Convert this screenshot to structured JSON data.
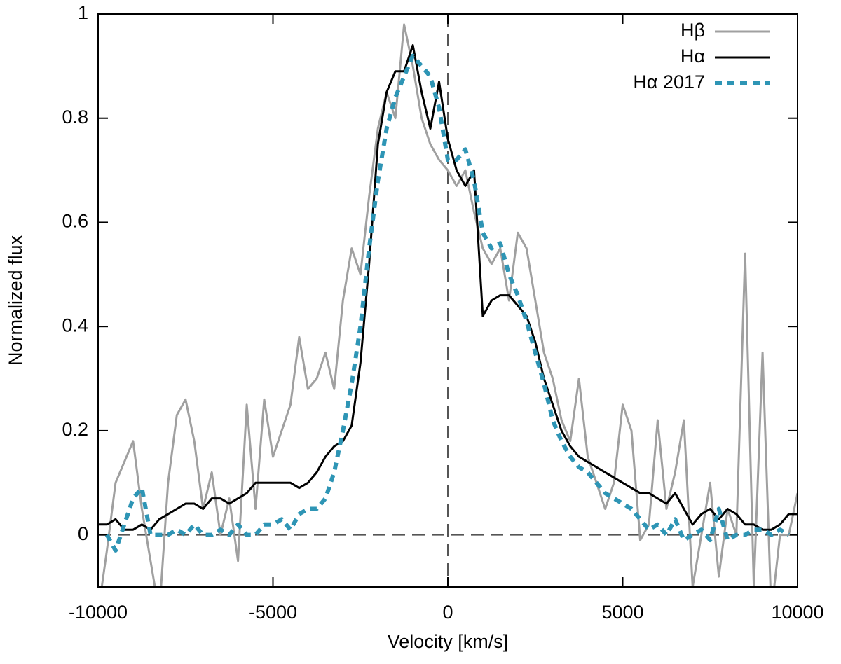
{
  "chart_data": {
    "type": "line",
    "xlabel": "Velocity [km/s]",
    "ylabel": "Normalized flux",
    "xlim": [
      -10000,
      10000
    ],
    "ylim": [
      -0.1,
      1
    ],
    "xticks": [
      -10000,
      -5000,
      0,
      5000,
      10000
    ],
    "yticks": [
      0,
      0.2,
      0.4,
      0.6,
      0.8,
      1
    ],
    "legend": "top-right",
    "x": [
      -10000,
      -9750,
      -9500,
      -9250,
      -9000,
      -8750,
      -8500,
      -8250,
      -8000,
      -7750,
      -7500,
      -7250,
      -7000,
      -6750,
      -6500,
      -6250,
      -6000,
      -5750,
      -5500,
      -5250,
      -5000,
      -4750,
      -4500,
      -4250,
      -4000,
      -3750,
      -3500,
      -3250,
      -3000,
      -2750,
      -2500,
      -2250,
      -2000,
      -1750,
      -1500,
      -1250,
      -1000,
      -750,
      -500,
      -250,
      0,
      250,
      500,
      750,
      1000,
      1250,
      1500,
      1750,
      2000,
      2250,
      2500,
      2750,
      3000,
      3250,
      3500,
      3750,
      4000,
      4250,
      4500,
      4750,
      5000,
      5250,
      5500,
      5750,
      6000,
      6250,
      6500,
      6750,
      7000,
      7250,
      7500,
      7750,
      8000,
      8250,
      8500,
      8750,
      9000,
      9250,
      9500,
      9750,
      10000
    ],
    "series": [
      {
        "name": "Hβ",
        "color": "#a0a0a0",
        "dashed": false,
        "values": [
          -0.15,
          -0.03,
          0.1,
          0.14,
          0.18,
          0.05,
          -0.05,
          -0.15,
          0.1,
          0.23,
          0.26,
          0.18,
          0.05,
          0.12,
          0.0,
          0.07,
          -0.05,
          0.25,
          0.05,
          0.26,
          0.15,
          0.2,
          0.25,
          0.38,
          0.28,
          0.3,
          0.35,
          0.28,
          0.45,
          0.55,
          0.5,
          0.65,
          0.78,
          0.85,
          0.8,
          0.98,
          0.9,
          0.8,
          0.75,
          0.72,
          0.7,
          0.67,
          0.7,
          0.62,
          0.55,
          0.52,
          0.55,
          0.45,
          0.58,
          0.55,
          0.45,
          0.35,
          0.3,
          0.22,
          0.18,
          0.3,
          0.15,
          0.1,
          0.05,
          0.1,
          0.25,
          0.2,
          -0.01,
          0.02,
          0.22,
          0.05,
          0.12,
          0.22,
          -0.1,
          0.0,
          0.1,
          -0.08,
          0.05,
          0.0,
          0.54,
          -0.1,
          0.35,
          -0.15,
          0.0,
          0.0,
          0.08
        ]
      },
      {
        "name": "Hα",
        "color": "#000000",
        "dashed": false,
        "values": [
          0.02,
          0.02,
          0.03,
          0.01,
          0.01,
          0.02,
          0.01,
          0.03,
          0.04,
          0.05,
          0.06,
          0.06,
          0.05,
          0.07,
          0.07,
          0.06,
          0.07,
          0.08,
          0.1,
          0.1,
          0.1,
          0.1,
          0.1,
          0.09,
          0.1,
          0.12,
          0.15,
          0.17,
          0.18,
          0.21,
          0.33,
          0.52,
          0.75,
          0.85,
          0.89,
          0.89,
          0.94,
          0.85,
          0.78,
          0.87,
          0.76,
          0.7,
          0.67,
          0.7,
          0.42,
          0.45,
          0.46,
          0.46,
          0.44,
          0.42,
          0.37,
          0.3,
          0.25,
          0.2,
          0.17,
          0.15,
          0.14,
          0.13,
          0.12,
          0.11,
          0.1,
          0.09,
          0.08,
          0.08,
          0.07,
          0.06,
          0.08,
          0.05,
          0.02,
          0.04,
          0.05,
          0.03,
          0.05,
          0.04,
          0.02,
          0.02,
          0.01,
          0.01,
          0.02,
          0.04,
          0.04
        ]
      },
      {
        "name": "Hα 2017",
        "color": "#2e95b5",
        "dashed": true,
        "values": [
          null,
          0.0,
          -0.03,
          0.02,
          0.07,
          0.09,
          0.0,
          0.0,
          0.0,
          0.01,
          0.0,
          0.02,
          0.0,
          0.0,
          0.01,
          0.0,
          0.02,
          0.0,
          0.0,
          0.02,
          0.02,
          0.03,
          0.01,
          0.04,
          0.05,
          0.05,
          0.07,
          0.12,
          0.2,
          0.29,
          0.4,
          0.55,
          0.68,
          0.78,
          0.84,
          0.88,
          0.92,
          0.9,
          0.88,
          0.82,
          0.72,
          0.72,
          0.74,
          0.68,
          0.58,
          0.55,
          0.56,
          0.5,
          0.46,
          0.41,
          0.35,
          0.29,
          0.22,
          0.18,
          0.15,
          0.13,
          0.12,
          0.1,
          0.08,
          0.07,
          0.06,
          0.05,
          0.03,
          0.01,
          0.02,
          0.0,
          0.03,
          -0.01,
          0.0,
          0.01,
          -0.01,
          0.05,
          -0.01,
          0.0,
          0.0,
          0.01,
          0.01,
          0.0,
          0.01,
          0.0,
          null
        ]
      }
    ]
  }
}
